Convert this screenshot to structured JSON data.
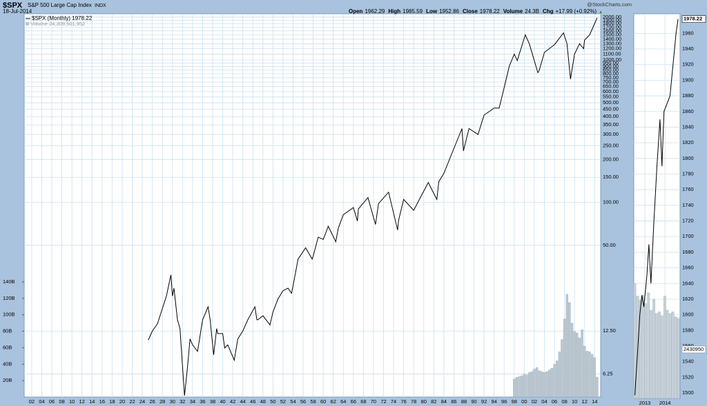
{
  "header": {
    "symbol": "$SPX",
    "name": "S&P 500 Large Cap Index",
    "exchange": "INDX",
    "date": "18-Jul-2014",
    "source": "@StockCharts.com",
    "quote": [
      {
        "label": "Open",
        "value": 1962.29
      },
      {
        "label": "High",
        "value": 1985.59
      },
      {
        "label": "Low",
        "value": 1952.86
      },
      {
        "label": "Close",
        "value": 1978.22
      },
      {
        "label": "Volume",
        "value": "24.3B"
      },
      {
        "label": "Chg",
        "value": "+17.99 (+0.92%)"
      }
    ],
    "chg_arrow": "▲"
  },
  "chart_data": [
    {
      "type": "line",
      "log_y": true,
      "grid": true,
      "xlim": [
        1900.5,
        2015.2
      ],
      "xticks": [
        {
          "value": 1902,
          "label": "02"
        },
        {
          "value": 1904,
          "label": "04"
        },
        {
          "value": 1906,
          "label": "06"
        },
        {
          "value": 1908,
          "label": "08"
        },
        {
          "value": 1910,
          "label": "10"
        },
        {
          "value": 1912,
          "label": "12"
        },
        {
          "value": 1914,
          "label": "14"
        },
        {
          "value": 1916,
          "label": "16"
        },
        {
          "value": 1918,
          "label": "18"
        },
        {
          "value": 1920,
          "label": "20"
        },
        {
          "value": 1922,
          "label": "22"
        },
        {
          "value": 1924,
          "label": "24"
        },
        {
          "value": 1926,
          "label": "26"
        },
        {
          "value": 1928,
          "label": "28"
        },
        {
          "value": 1930,
          "label": "30"
        },
        {
          "value": 1932,
          "label": "32"
        },
        {
          "value": 1934,
          "label": "34"
        },
        {
          "value": 1936,
          "label": "36"
        },
        {
          "value": 1938,
          "label": "38"
        },
        {
          "value": 1940,
          "label": "40"
        },
        {
          "value": 1942,
          "label": "42"
        },
        {
          "value": 1944,
          "label": "44"
        },
        {
          "value": 1946,
          "label": "46"
        },
        {
          "value": 1948,
          "label": "48"
        },
        {
          "value": 1950,
          "label": "50"
        },
        {
          "value": 1952,
          "label": "52"
        },
        {
          "value": 1954,
          "label": "54"
        },
        {
          "value": 1956,
          "label": "56"
        },
        {
          "value": 1958,
          "label": "58"
        },
        {
          "value": 1960,
          "label": "60"
        },
        {
          "value": 1962,
          "label": "62"
        },
        {
          "value": 1964,
          "label": "64"
        },
        {
          "value": 1966,
          "label": "66"
        },
        {
          "value": 1968,
          "label": "68"
        },
        {
          "value": 1970,
          "label": "70"
        },
        {
          "value": 1972,
          "label": "72"
        },
        {
          "value": 1974,
          "label": "74"
        },
        {
          "value": 1976,
          "label": "76"
        },
        {
          "value": 1978,
          "label": "78"
        },
        {
          "value": 1980,
          "label": "80"
        },
        {
          "value": 1982,
          "label": "82"
        },
        {
          "value": 1984,
          "label": "84"
        },
        {
          "value": 1986,
          "label": "86"
        },
        {
          "value": 1988,
          "label": "88"
        },
        {
          "value": 1990,
          "label": "90"
        },
        {
          "value": 1992,
          "label": "92"
        },
        {
          "value": 1994,
          "label": "94"
        },
        {
          "value": 1996,
          "label": "96"
        },
        {
          "value": 1998,
          "label": "98"
        },
        {
          "value": 2000,
          "label": "00"
        },
        {
          "value": 2002,
          "label": "02"
        },
        {
          "value": 2004,
          "label": "04"
        },
        {
          "value": 2006,
          "label": "06"
        },
        {
          "value": 2008,
          "label": "08"
        },
        {
          "value": 2010,
          "label": "10"
        },
        {
          "value": 2012,
          "label": "12"
        },
        {
          "value": 2014,
          "label": "14"
        }
      ],
      "ylim": [
        4.3,
        2110
      ],
      "yticks": [
        6.25,
        {
          "value": 12.5,
          "label": "12.50"
        },
        {
          "value": 50,
          "label": "50.00"
        },
        {
          "value": 100,
          "label": "100.00"
        },
        {
          "value": 150,
          "label": "150.00"
        },
        {
          "value": 200,
          "label": "200.00"
        },
        {
          "value": 250,
          "label": "250.00"
        },
        {
          "value": 300,
          "label": "300.00"
        },
        {
          "value": 350,
          "label": "350.00"
        },
        {
          "value": 400,
          "label": "400.00"
        },
        {
          "value": 450,
          "label": "450.00"
        },
        {
          "value": 500,
          "label": "500.00"
        },
        {
          "value": 550,
          "label": "550.00"
        },
        {
          "value": 600,
          "label": "600.00"
        },
        {
          "value": 650,
          "label": "650.00"
        },
        {
          "value": 700,
          "label": "700.00"
        },
        {
          "value": 750,
          "label": "750.00"
        },
        {
          "value": 800,
          "label": "800.00"
        },
        {
          "value": 850,
          "label": "850.00"
        },
        {
          "value": 900,
          "label": "900.00"
        },
        {
          "value": 950,
          "label": "950.00"
        },
        {
          "value": 1000,
          "label": "1000.00"
        },
        {
          "value": 1100,
          "label": "1100.00"
        },
        {
          "value": 1200,
          "label": "1200.00"
        },
        {
          "value": 1300,
          "label": "1300.00"
        },
        {
          "value": 1400,
          "label": "1400.00"
        },
        {
          "value": 1500,
          "label": "1500.00"
        },
        {
          "value": 1600,
          "label": "1600.00"
        },
        {
          "value": 1700,
          "label": "1700.00"
        },
        {
          "value": 1800,
          "label": "1800.00"
        },
        {
          "value": 1900,
          "label": "1900.00"
        },
        {
          "value": 2000,
          "label": "2000.00"
        }
      ],
      "y2lim": [
        0,
        466
      ],
      "y2ticks": [
        {
          "value": 20,
          "label": "20B"
        },
        {
          "value": 40,
          "label": "40B"
        },
        {
          "value": 60,
          "label": "60B"
        },
        {
          "value": 80,
          "label": "80B"
        },
        {
          "value": 100,
          "label": "100B"
        },
        {
          "value": 120,
          "label": "120B"
        },
        {
          "value": 140,
          "label": "140B"
        }
      ],
      "series": [
        {
          "name": "$SPX (Monthly) 1978.22",
          "color": "#000000",
          "x": [
            1925.2,
            1926,
            1927,
            1928,
            1928.8,
            1929.7,
            1930,
            1930.3,
            1931,
            1931.5,
            1932.4,
            1933,
            1933.5,
            1934,
            1935,
            1936,
            1937.1,
            1937.5,
            1938.2,
            1938.8,
            1939,
            1940,
            1940.4,
            1941,
            1942.3,
            1943,
            1944,
            1945,
            1946.4,
            1946.8,
            1947,
            1948,
            1949.4,
            1950,
            1951,
            1952,
            1953,
            1953.7,
            1954,
            1955,
            1956.5,
            1957.8,
            1958,
            1959,
            1960,
            1961,
            1962.5,
            1963,
            1964,
            1966,
            1966.8,
            1967,
            1968.9,
            1970.4,
            1971,
            1973,
            1974.8,
            1975,
            1976,
            1978,
            1980,
            1980.9,
            1982.6,
            1983,
            1984,
            1987.6,
            1987.9,
            1989,
            1990.8,
            1992,
            1994,
            1995,
            1996,
            1997,
            1998,
            1998.6,
            2000.2,
            2001,
            2002.7,
            2003,
            2004,
            2006,
            2007.8,
            2008.5,
            2009.2,
            2010,
            2011,
            2011.8,
            2012,
            2013,
            2014,
            2014.5
          ],
          "values": [
            10.8,
            12.5,
            14,
            18,
            22,
            31,
            22,
            25,
            15,
            13,
            4.4,
            7,
            11,
            10,
            9,
            15,
            18.5,
            15,
            8.5,
            13,
            12,
            12,
            9.5,
            10,
            7.8,
            11,
            12.5,
            15,
            18.5,
            15,
            15,
            16,
            13.8,
            17,
            21,
            24,
            25,
            23,
            26,
            40,
            48,
            40,
            42,
            57,
            55,
            68,
            53,
            66,
            82,
            92,
            74,
            90,
            108,
            70,
            98,
            118,
            64,
            75,
            105,
            88,
            120,
            138,
            105,
            140,
            160,
            330,
            230,
            330,
            300,
            410,
            460,
            460,
            640,
            900,
            1100,
            990,
            1500,
            1300,
            815,
            850,
            1130,
            1280,
            1550,
            1300,
            735,
            1100,
            1300,
            1200,
            1380,
            1500,
            1800,
            1978.22
          ]
        },
        {
          "name": "Volume 24,309,501,952",
          "type": "bar",
          "axis": "y2",
          "color": "#b9c6cf",
          "x": [
            1998,
            1998.5,
            1999,
            1999.5,
            2000,
            2000.5,
            2001,
            2001.5,
            2002,
            2002.5,
            2003,
            2003.5,
            2004,
            2004.5,
            2005,
            2005.5,
            2006,
            2006.5,
            2007,
            2007.5,
            2008,
            2008.5,
            2009,
            2009.5,
            2010,
            2010.5,
            2011,
            2011.5,
            2012,
            2012.5,
            2013,
            2013.5,
            2014,
            2014.5
          ],
          "values": [
            22,
            24,
            25,
            26,
            28,
            27,
            30,
            31,
            34,
            36,
            32,
            31,
            30,
            31,
            33,
            35,
            40,
            44,
            55,
            70,
            95,
            125,
            115,
            90,
            80,
            78,
            72,
            82,
            62,
            56,
            55,
            52,
            48,
            24.3
          ]
        }
      ]
    },
    {
      "type": "line",
      "grid": true,
      "xlim": [
        2012.45,
        2014.75
      ],
      "xticks": [
        2013,
        2014
      ],
      "ylim": [
        1493,
        1985
      ],
      "yticks": [
        1500,
        1520,
        1540,
        1560,
        1580,
        1600,
        1620,
        1640,
        1660,
        1680,
        1700,
        1720,
        1740,
        1760,
        1780,
        1800,
        1820,
        1840,
        1860,
        1880,
        1900,
        1920,
        1940,
        1960
      ],
      "y2lim": [
        0,
        466
      ],
      "volume_label": "2430950",
      "series": [
        {
          "name": "$SPX",
          "color": "#000000",
          "x": [
            2012.5,
            2012.62,
            2012.75,
            2012.85,
            2012.95,
            2013.1,
            2013.2,
            2013.3,
            2013.45,
            2013.6,
            2013.75,
            2013.85,
            2013.95,
            2014.1,
            2014.25,
            2014.4,
            2014.55,
            2014.65
          ],
          "values": [
            1497,
            1545,
            1600,
            1625,
            1610,
            1650,
            1690,
            1640,
            1720,
            1790,
            1850,
            1790,
            1860,
            1870,
            1880,
            1920,
            1960,
            1978.22
          ]
        },
        {
          "name": "Volume",
          "type": "bar",
          "axis": "y2",
          "color": "#c5d0d8",
          "x": [
            2012.5,
            2012.64,
            2012.77,
            2012.91,
            2013.04,
            2013.18,
            2013.31,
            2013.45,
            2013.58,
            2013.72,
            2013.85,
            2013.99,
            2014.12,
            2014.26,
            2014.39,
            2014.53,
            2014.66
          ],
          "values": [
            139,
            124,
            119,
            125,
            115,
            128,
            107,
            120,
            103,
            105,
            100,
            124,
            107,
            103,
            105,
            99,
            97
          ]
        }
      ]
    }
  ]
}
